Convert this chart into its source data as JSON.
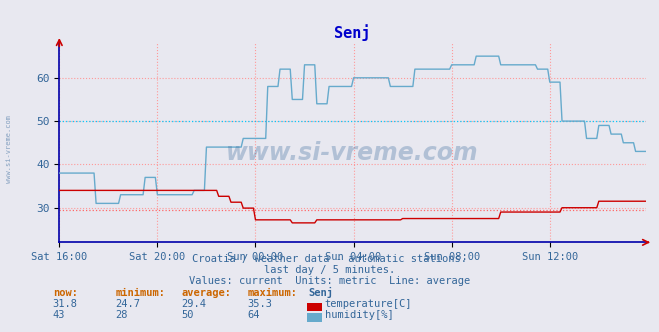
{
  "title": "Senj",
  "title_color": "#0000cc",
  "bg_color": "#e8e8f0",
  "plot_bg_color": "#e8e8f0",
  "grid_color": "#ff9999",
  "ylim": [
    22,
    68
  ],
  "yticks": [
    30,
    40,
    50,
    60
  ],
  "avg_temp": 29.4,
  "avg_hum": 50,
  "xtick_labels": [
    "Sat 16:00",
    "Sat 20:00",
    "Sun 00:00",
    "Sun 04:00",
    "Sun 08:00",
    "Sun 12:00"
  ],
  "footer_line1": "Croatia / weather data - automatic stations.",
  "footer_line2": "last day / 5 minutes.",
  "footer_line3": "Values: current  Units: metric  Line: average",
  "legend_headers": [
    "now:",
    "minimum:",
    "average:",
    "maximum:",
    "Senj"
  ],
  "temp_row": [
    "31.8",
    "24.7",
    "29.4",
    "35.3",
    "temperature[C]"
  ],
  "hum_row": [
    "43",
    "28",
    "50",
    "64",
    "humidity[%]"
  ],
  "temp_color": "#cc0000",
  "hum_color": "#66aacc",
  "text_color": "#336699",
  "watermark": "www.si-vreme.com",
  "side_text": "www.si-vreme.com"
}
